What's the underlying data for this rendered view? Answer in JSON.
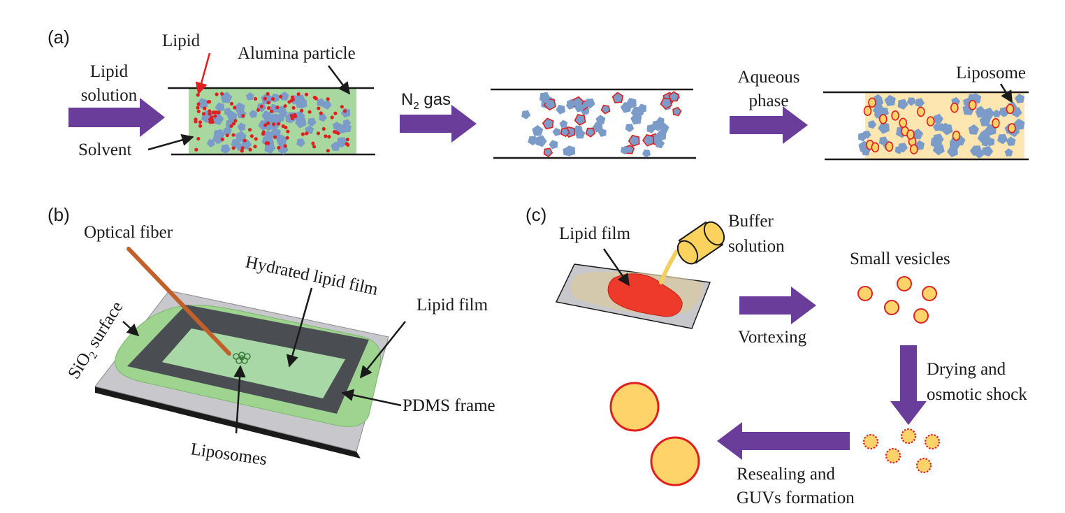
{
  "panel_a": {
    "label": "(a)",
    "lipid": "Lipid",
    "alumina_particle": "Alumina particle",
    "lipid_solution_1": "Lipid",
    "lipid_solution_2": "solution",
    "solvent": "Solvent",
    "n2_gas_n": "N",
    "n2_gas_sub": "2",
    "n2_gas_rest": " gas",
    "aqueous_1": "Aqueous",
    "aqueous_2": "phase",
    "liposome": "Liposome"
  },
  "panel_b": {
    "label": "(b)",
    "optical_fiber": "Optical fiber",
    "hydrated_lipid_film": "Hydrated lipid film",
    "lipid_film": "Lipid film",
    "sio2_si": "SiO",
    "sio2_sub": "2",
    "sio2_rest": " surface",
    "pdms_frame": "PDMS frame",
    "liposomes": "Liposomes"
  },
  "panel_c": {
    "label": "(c)",
    "lipid_film": "Lipid film",
    "buffer_1": "Buffer",
    "buffer_2": "solution",
    "small_vesicles": "Small vesicles",
    "vortexing": "Vortexing",
    "drying_1": "Drying and",
    "drying_2": "osmotic shock",
    "resealing_1": "Resealing and",
    "resealing_2": "GUVs formation"
  },
  "colors": {
    "arrow": "#6a3d9a",
    "solvent_green": "#a8d8a0",
    "aqueous_yellow": "#fde6b0",
    "particle_blue": "#7b9bc9",
    "lipid_red": "#e02020",
    "vesicle_fill": "#fdd36a",
    "pdms_gray": "#4a4d52",
    "film_green": "#9ed490",
    "fiber_brown": "#c0602a",
    "substrate_gray": "#c8c8cc"
  }
}
